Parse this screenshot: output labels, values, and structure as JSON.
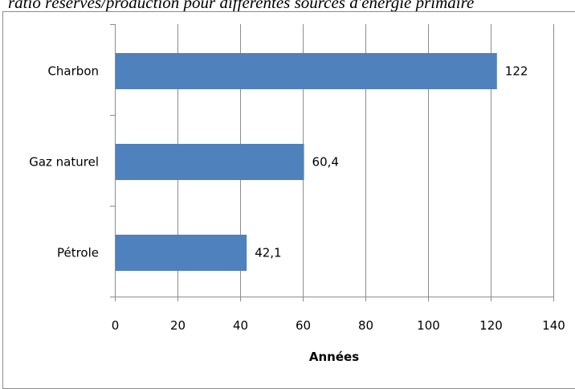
{
  "chart_data": {
    "type": "bar",
    "orientation": "horizontal",
    "title": "ratio réserves/production pour différentes sources d'énergie primaire",
    "categories": [
      "Charbon",
      "Gaz naturel",
      "Pétrole"
    ],
    "values": [
      122,
      60.4,
      42.1
    ],
    "data_labels": [
      "122",
      "60,4",
      "42,1"
    ],
    "xlabel": "Années",
    "ylabel": "",
    "xlim": [
      0,
      140
    ],
    "xticks": [
      "0",
      "20",
      "40",
      "60",
      "80",
      "100",
      "120",
      "140"
    ],
    "grid": "vertical",
    "legend": "none",
    "bar_color": "#4f81bd"
  }
}
